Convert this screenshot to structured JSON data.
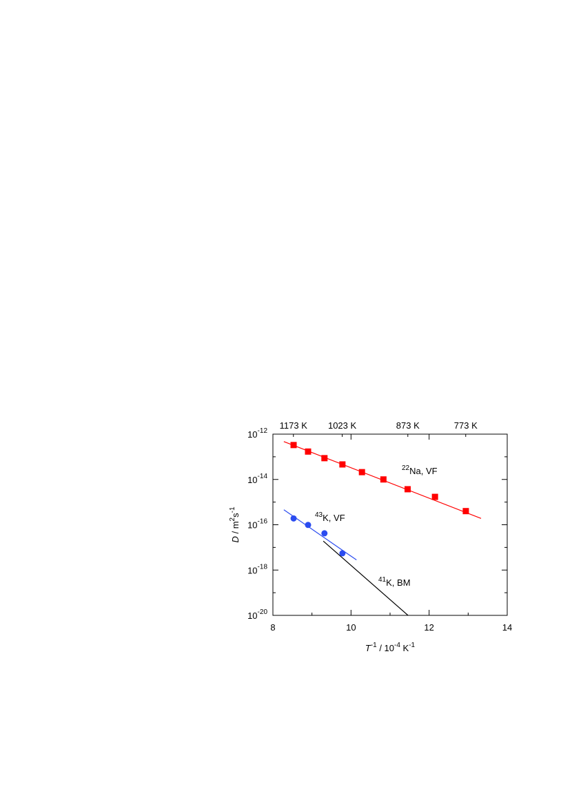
{
  "chart_data": {
    "type": "scatter",
    "xlabel": [
      {
        "text": "T",
        "italic": true
      },
      {
        "text": "-1",
        "sup": true
      },
      {
        "text": " / 10"
      },
      {
        "text": "-4",
        "sup": true
      },
      {
        "text": " K"
      },
      {
        "text": "-1",
        "sup": true
      }
    ],
    "ylabel": [
      {
        "text": "D",
        "italic": true
      },
      {
        "text": " / m"
      },
      {
        "text": "2",
        "sup": true
      },
      {
        "text": "s"
      },
      {
        "text": "-1",
        "sup": true
      }
    ],
    "xlim": [
      8,
      14
    ],
    "xticks": [
      8,
      10,
      12,
      14
    ],
    "xminor": [
      9,
      11,
      13
    ],
    "ylim": [
      1e-20,
      1e-12
    ],
    "log_y": true,
    "yticks": [
      {
        "value": 1e-12,
        "label": "10",
        "exponent": "-12"
      },
      {
        "value": 1e-14,
        "label": "10",
        "exponent": "-14"
      },
      {
        "value": 1e-16,
        "label": "10",
        "exponent": "-16"
      },
      {
        "value": 1e-18,
        "label": "10",
        "exponent": "-18"
      },
      {
        "value": 1e-20,
        "label": "10",
        "exponent": "-20"
      }
    ],
    "yminor": [
      1e-13,
      1e-15,
      1e-17,
      1e-19
    ],
    "x2ticks": [
      {
        "value": 8.525,
        "label": "1173 K"
      },
      {
        "value": 9.775,
        "label": "1023 K"
      },
      {
        "value": 11.455,
        "label": "873 K"
      },
      {
        "value": 12.937,
        "label": "773 K"
      }
    ],
    "series": [
      {
        "color": "#ff0000",
        "marker": "square",
        "x": [
          8.53,
          8.9,
          9.32,
          9.78,
          10.28,
          10.83,
          11.45,
          12.15,
          12.94
        ],
        "values": [
          3.3e-13,
          1.7e-13,
          8.7e-14,
          4.6e-14,
          2.1e-14,
          1e-14,
          3.7e-15,
          1.7e-15,
          4e-16
        ]
      },
      {
        "color": "#2b4cf0",
        "marker": "circle",
        "x": [
          8.53,
          8.9,
          9.32,
          9.78
        ],
        "values": [
          1.9e-16,
          9.8e-17,
          4.2e-17,
          5.5e-18
        ]
      }
    ],
    "fits": [
      {
        "color": "#ff0000",
        "x": [
          8.28,
          13.33
        ],
        "values": [
          4.7e-13,
          1.9e-16
        ]
      },
      {
        "color": "#2b4cf0",
        "x": [
          8.28,
          10.14
        ],
        "values": [
          4.6e-16,
          2.8e-18
        ]
      },
      {
        "color": "#000000",
        "x": [
          9.29,
          11.46
        ],
        "values": [
          1.9e-17,
          1e-20
        ]
      }
    ],
    "annotations": [
      {
        "sup": "22",
        "text": "Na, VF"
      },
      {
        "sup": "43",
        "text": "K, VF"
      },
      {
        "sup": "41",
        "text": "K, BM"
      }
    ]
  }
}
